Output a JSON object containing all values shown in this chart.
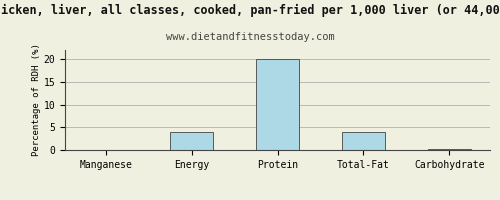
{
  "title1": "icken, liver, all classes, cooked, pan-fried per 1,000 liver (or 44,00",
  "title2": "www.dietandfitnesstoday.com",
  "categories": [
    "Manganese",
    "Energy",
    "Protein",
    "Total-Fat",
    "Carbohydrate"
  ],
  "values": [
    0,
    4,
    20,
    4,
    0.3
  ],
  "bar_color": "#add8e6",
  "ylabel": "Percentage of RDH (%)",
  "ylim": [
    0,
    22
  ],
  "yticks": [
    0,
    5,
    10,
    15,
    20
  ],
  "background_color": "#f0f0e0",
  "plot_bg_color": "#f0f0e0",
  "grid_color": "#b0b0b0",
  "border_color": "#444444",
  "title1_fontsize": 8.5,
  "title2_fontsize": 7.5,
  "ylabel_fontsize": 6.5,
  "tick_fontsize": 7
}
